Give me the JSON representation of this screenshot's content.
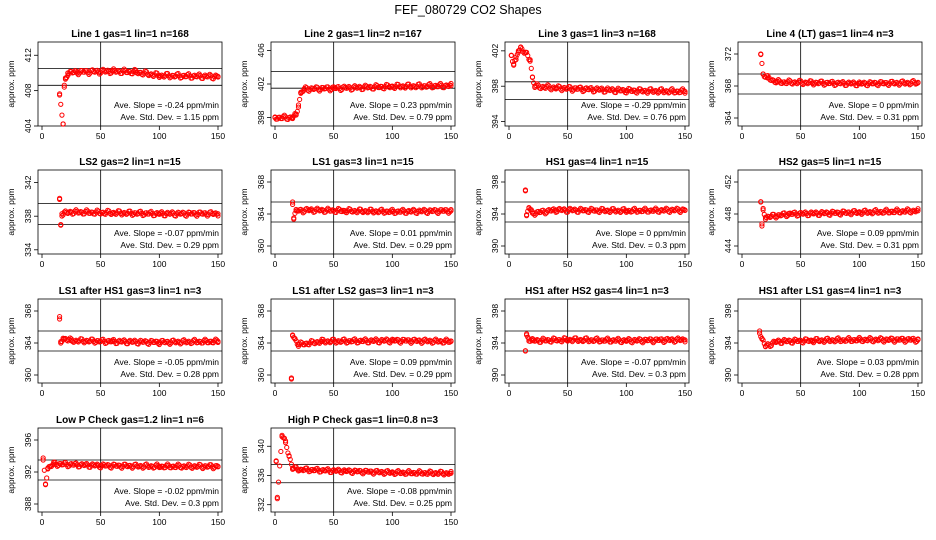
{
  "page": {
    "title": "FEF_080729  CO2 Shapes"
  },
  "chart_data": [
    {
      "type": "scatter",
      "title": "Line 1 gas=1 lin=1 n=168",
      "ylabel": "approx. ppm",
      "xlim": [
        0,
        150
      ],
      "xticks": [
        0,
        50,
        100,
        150
      ],
      "ylim": [
        404,
        413.5
      ],
      "yticks": [
        404,
        408,
        412
      ],
      "hlines": [
        408.6,
        410.5
      ],
      "vline": 50,
      "anchors": [
        [
          15,
          407.5
        ],
        [
          18,
          404.2
        ],
        [
          19,
          408.4
        ],
        [
          20,
          409.3
        ],
        [
          22,
          410.0
        ],
        [
          30,
          410.1
        ],
        [
          60,
          410.2
        ],
        [
          80,
          410.1
        ],
        [
          100,
          409.7
        ],
        [
          150,
          409.6
        ]
      ],
      "slope": "Ave. Slope =  -0.24  ppm/min",
      "std": "Ave. Std. Dev. =  1.15  ppm",
      "series_color": "#ff0000"
    },
    {
      "type": "scatter",
      "title": "Line 2 gas=1 lin=2 n=167",
      "ylabel": "approx. ppm",
      "xlim": [
        0,
        150
      ],
      "xticks": [
        0,
        50,
        100,
        150
      ],
      "ylim": [
        397,
        407
      ],
      "yticks": [
        398,
        402,
        406
      ],
      "hlines": [
        401.5,
        403.5
      ],
      "vline": 50,
      "anchors": [
        [
          0,
          398.0
        ],
        [
          15,
          398.0
        ],
        [
          18,
          398.3
        ],
        [
          20,
          399.5
        ],
        [
          22,
          400.9
        ],
        [
          25,
          401.4
        ],
        [
          50,
          401.5
        ],
        [
          100,
          401.7
        ],
        [
          150,
          401.8
        ]
      ],
      "slope": "Ave. Slope =  0.23  ppm/min",
      "std": "Ave. Std. Dev. =  0.79  ppm",
      "series_color": "#ff0000"
    },
    {
      "type": "scatter",
      "title": "Line 3 gas=1 lin=3 n=168",
      "ylabel": "approx. ppm",
      "xlim": [
        0,
        150
      ],
      "xticks": [
        0,
        50,
        100,
        150
      ],
      "ylim": [
        393.5,
        403
      ],
      "yticks": [
        394,
        398,
        402
      ],
      "hlines": [
        396.5,
        398.5
      ],
      "vline": 50,
      "anchors": [
        [
          2,
          401.5
        ],
        [
          4,
          400.5
        ],
        [
          6,
          401.0
        ],
        [
          8,
          402.0
        ],
        [
          10,
          402.4
        ],
        [
          18,
          401.0
        ],
        [
          20,
          399.0
        ],
        [
          22,
          398.0
        ],
        [
          40,
          397.8
        ],
        [
          100,
          397.5
        ],
        [
          150,
          397.4
        ]
      ],
      "slope": "Ave. Slope =  -0.29  ppm/min",
      "std": "Ave. Std. Dev. =  0.76  ppm",
      "series_color": "#ff0000"
    },
    {
      "type": "scatter",
      "title": "Line 4 (LT) gas=1 lin=4 n=3",
      "ylabel": "approx. ppm",
      "xlim": [
        0,
        150
      ],
      "xticks": [
        0,
        50,
        100,
        150
      ],
      "ylim": [
        363,
        373.5
      ],
      "yticks": [
        364,
        368,
        372
      ],
      "hlines": [
        367,
        369.5
      ],
      "vline": 50,
      "anchors": [
        [
          16,
          372.0
        ],
        [
          18,
          369.5
        ],
        [
          22,
          369.0
        ],
        [
          30,
          368.5
        ],
        [
          60,
          368.4
        ],
        [
          100,
          368.3
        ],
        [
          150,
          368.4
        ]
      ],
      "slope": "Ave. Slope =  0  ppm/min",
      "std": "Ave. Std. Dev. =  0.31  ppm",
      "series_color": "#ff0000"
    },
    {
      "type": "scatter",
      "title": "LS2 gas=2 lin=1 n=15",
      "ylabel": "approx. ppm",
      "xlim": [
        0,
        150
      ],
      "xticks": [
        0,
        50,
        100,
        150
      ],
      "ylim": [
        333.5,
        343.5
      ],
      "yticks": [
        334,
        338,
        342
      ],
      "hlines": [
        337,
        339.5
      ],
      "vline": 50,
      "anchors": [
        [
          15,
          340.0
        ],
        [
          16,
          337.0
        ],
        [
          17,
          338.3
        ],
        [
          25,
          338.5
        ],
        [
          60,
          338.4
        ],
        [
          100,
          338.3
        ],
        [
          150,
          338.3
        ]
      ],
      "slope": "Ave. Slope =  -0.07  ppm/min",
      "std": "Ave. Std. Dev. =  0.29  ppm",
      "series_color": "#ff0000"
    },
    {
      "type": "scatter",
      "title": "LS1 gas=3 lin=1 n=15",
      "ylabel": "approx. ppm",
      "xlim": [
        0,
        150
      ],
      "xticks": [
        0,
        50,
        100,
        150
      ],
      "ylim": [
        359,
        369.5
      ],
      "yticks": [
        360,
        364,
        368
      ],
      "hlines": [
        363,
        365.5
      ],
      "vline": 50,
      "anchors": [
        [
          15,
          365.5
        ],
        [
          16,
          363.5
        ],
        [
          18,
          364.4
        ],
        [
          30,
          364.5
        ],
        [
          60,
          364.4
        ],
        [
          100,
          364.3
        ],
        [
          150,
          364.4
        ]
      ],
      "slope": "Ave. Slope =  0.01  ppm/min",
      "std": "Ave. Std. Dev. =  0.29  ppm",
      "series_color": "#ff0000"
    },
    {
      "type": "scatter",
      "title": "HS1 gas=4 lin=1 n=15",
      "ylabel": "approx. ppm",
      "xlim": [
        0,
        150
      ],
      "xticks": [
        0,
        50,
        100,
        150
      ],
      "ylim": [
        389,
        399.5
      ],
      "yticks": [
        390,
        394,
        398
      ],
      "hlines": [
        393,
        395.5
      ],
      "vline": 50,
      "anchors": [
        [
          14,
          397.0
        ],
        [
          15,
          393.8
        ],
        [
          17,
          394.8
        ],
        [
          20,
          394.1
        ],
        [
          40,
          394.5
        ],
        [
          100,
          394.4
        ],
        [
          150,
          394.5
        ]
      ],
      "slope": "Ave. Slope =  0  ppm/min",
      "std": "Ave. Std. Dev. =  0.3  ppm",
      "series_color": "#ff0000"
    },
    {
      "type": "scatter",
      "title": "HS2 gas=5 lin=1 n=15",
      "ylabel": "approx. ppm",
      "xlim": [
        0,
        150
      ],
      "xticks": [
        0,
        50,
        100,
        150
      ],
      "ylim": [
        443,
        453.5
      ],
      "yticks": [
        444,
        448,
        452
      ],
      "hlines": [
        447,
        449.5
      ],
      "vline": 50,
      "anchors": [
        [
          16,
          449.5
        ],
        [
          17,
          446.5
        ],
        [
          18,
          448.5
        ],
        [
          20,
          447.6
        ],
        [
          40,
          448.0
        ],
        [
          100,
          448.2
        ],
        [
          150,
          448.4
        ]
      ],
      "slope": "Ave. Slope =  0.09  ppm/min",
      "std": "Ave. Std. Dev. =  0.31  ppm",
      "series_color": "#ff0000"
    },
    {
      "type": "scatter",
      "title": "LS1 after HS1 gas=3 lin=1 n=3",
      "ylabel": "approx. ppm",
      "xlim": [
        0,
        150
      ],
      "xticks": [
        0,
        50,
        100,
        150
      ],
      "ylim": [
        359,
        369.5
      ],
      "yticks": [
        360,
        364,
        368
      ],
      "hlines": [
        363,
        365.5
      ],
      "vline": 50,
      "anchors": [
        [
          15,
          367.0
        ],
        [
          16,
          364.0
        ],
        [
          18,
          364.6
        ],
        [
          25,
          364.3
        ],
        [
          60,
          364.2
        ],
        [
          100,
          364.1
        ],
        [
          150,
          364.2
        ]
      ],
      "slope": "Ave. Slope =  -0.05  ppm/min",
      "std": "Ave. Std. Dev. =  0.28  ppm",
      "series_color": "#ff0000"
    },
    {
      "type": "scatter",
      "title": "LS1 after LS2 gas=3 lin=1 n=3",
      "ylabel": "approx. ppm",
      "xlim": [
        0,
        150
      ],
      "xticks": [
        0,
        50,
        100,
        150
      ],
      "ylim": [
        359,
        369.5
      ],
      "yticks": [
        360,
        364,
        368
      ],
      "hlines": [
        363,
        365.5
      ],
      "vline": 50,
      "anchors": [
        [
          14,
          359.5
        ],
        [
          15,
          365.0
        ],
        [
          17,
          364.5
        ],
        [
          20,
          363.8
        ],
        [
          40,
          364.2
        ],
        [
          100,
          364.3
        ],
        [
          150,
          364.2
        ]
      ],
      "slope": "Ave. Slope =  0.09  ppm/min",
      "std": "Ave. Std. Dev. =  0.29  ppm",
      "series_color": "#ff0000"
    },
    {
      "type": "scatter",
      "title": "HS1 after HS2 gas=4 lin=1 n=3",
      "ylabel": "approx. ppm",
      "xlim": [
        0,
        150
      ],
      "xticks": [
        0,
        50,
        100,
        150
      ],
      "ylim": [
        389,
        399.5
      ],
      "yticks": [
        390,
        394,
        398
      ],
      "hlines": [
        393,
        395.5
      ],
      "vline": 50,
      "anchors": [
        [
          14,
          393.0
        ],
        [
          15,
          395.0
        ],
        [
          17,
          394.5
        ],
        [
          20,
          394.3
        ],
        [
          50,
          394.4
        ],
        [
          100,
          394.3
        ],
        [
          150,
          394.4
        ]
      ],
      "slope": "Ave. Slope =  -0.07  ppm/min",
      "std": "Ave. Std. Dev. =  0.3  ppm",
      "series_color": "#ff0000"
    },
    {
      "type": "scatter",
      "title": "HS1 after LS1 gas=4 lin=1 n=3",
      "ylabel": "approx. ppm",
      "xlim": [
        0,
        150
      ],
      "xticks": [
        0,
        50,
        100,
        150
      ],
      "ylim": [
        389,
        399.5
      ],
      "yticks": [
        390,
        394,
        398
      ],
      "hlines": [
        393,
        395.5
      ],
      "vline": 50,
      "anchors": [
        [
          15,
          395.5
        ],
        [
          17,
          394.5
        ],
        [
          20,
          393.6
        ],
        [
          30,
          394.2
        ],
        [
          60,
          394.3
        ],
        [
          100,
          394.4
        ],
        [
          150,
          394.4
        ]
      ],
      "slope": "Ave. Slope =  0.03  ppm/min",
      "std": "Ave. Std. Dev. =  0.28  ppm",
      "series_color": "#ff0000"
    },
    {
      "type": "scatter",
      "title": "Low P Check gas=1.2 lin=1 n=6",
      "ylabel": "approx. ppm",
      "xlim": [
        0,
        150
      ],
      "xticks": [
        0,
        50,
        100,
        150
      ],
      "ylim": [
        387,
        397.5
      ],
      "yticks": [
        388,
        392,
        396
      ],
      "hlines": [
        391,
        393.5
      ],
      "vline": 50,
      "anchors": [
        [
          1,
          393.5
        ],
        [
          3,
          390.5
        ],
        [
          5,
          392.5
        ],
        [
          10,
          393.0
        ],
        [
          50,
          392.8
        ],
        [
          100,
          392.7
        ],
        [
          150,
          392.7
        ]
      ],
      "slope": "Ave. Slope =  -0.02  ppm/min",
      "std": "Ave. Std. Dev. =  0.3  ppm",
      "series_color": "#ff0000"
    },
    {
      "type": "scatter",
      "title": "High P Check gas=1 lin=0.8 n=3",
      "ylabel": "approx. ppm",
      "xlim": [
        0,
        150
      ],
      "xticks": [
        0,
        50,
        100,
        150
      ],
      "ylim": [
        331,
        342.5
      ],
      "yticks": [
        332,
        336,
        340
      ],
      "hlines": [
        335,
        337.5
      ],
      "vline": 50,
      "anchors": [
        [
          1,
          338.0
        ],
        [
          2,
          333.0
        ],
        [
          6,
          341.5
        ],
        [
          9,
          340.5
        ],
        [
          12,
          338.7
        ],
        [
          15,
          337.0
        ],
        [
          22,
          336.8
        ],
        [
          60,
          336.6
        ],
        [
          100,
          336.4
        ],
        [
          150,
          336.3
        ]
      ],
      "slope": "Ave. Slope =  -0.08  ppm/min",
      "std": "Ave. Std. Dev. =  0.25  ppm",
      "series_color": "#ff0000"
    }
  ]
}
